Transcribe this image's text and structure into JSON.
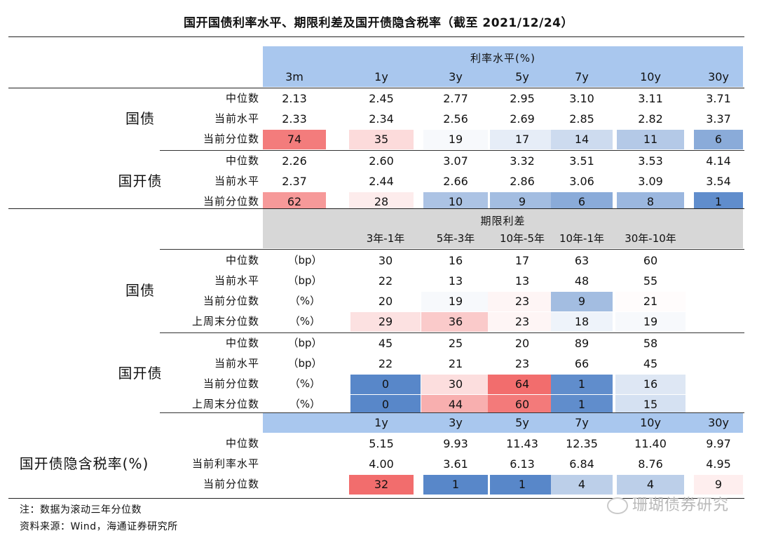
{
  "title": "国开国债利率水平、期限利差及国开债隐含税率（截至 2021/12/24）",
  "colors": {
    "header_blue": "#a9c7ee",
    "header_gray": "#d7d7d7",
    "scale_high": "#f26d6d",
    "scale_mid": "#ffffff",
    "scale_low": "#5887c9"
  },
  "section1": {
    "band_title": "利率水平(%)",
    "tenors": [
      "3m",
      "1y",
      "3y",
      "5y",
      "7y",
      "10y",
      "30y"
    ],
    "groups": [
      {
        "name": "国债",
        "rows": [
          {
            "label": "中位数",
            "values": [
              "2.13",
              "2.45",
              "2.77",
              "2.95",
              "3.10",
              "3.11",
              "3.71"
            ]
          },
          {
            "label": "当前水平",
            "values": [
              "2.33",
              "2.34",
              "2.56",
              "2.69",
              "2.85",
              "2.82",
              "3.37"
            ]
          },
          {
            "label": "当前分位数",
            "values": [
              "74",
              "35",
              "19",
              "17",
              "14",
              "11",
              "6"
            ],
            "heat": [
              74,
              35,
              19,
              17,
              14,
              11,
              6
            ]
          }
        ]
      },
      {
        "name": "国开债",
        "rows": [
          {
            "label": "中位数",
            "values": [
              "2.26",
              "2.60",
              "3.07",
              "3.32",
              "3.51",
              "3.53",
              "4.14"
            ]
          },
          {
            "label": "当前水平",
            "values": [
              "2.37",
              "2.44",
              "2.66",
              "2.86",
              "3.06",
              "3.09",
              "3.54"
            ]
          },
          {
            "label": "当前分位数",
            "values": [
              "62",
              "28",
              "10",
              "9",
              "6",
              "8",
              "1"
            ],
            "heat": [
              62,
              28,
              10,
              9,
              6,
              8,
              1
            ]
          }
        ]
      }
    ]
  },
  "section2": {
    "band_title": "期限利差",
    "spreads": [
      "3年-1年",
      "5年-3年",
      "10年-5年",
      "10年-1年",
      "30年-10年"
    ],
    "groups": [
      {
        "name": "国债",
        "rows": [
          {
            "label": "中位数",
            "unit": "（bp）",
            "values": [
              "30",
              "16",
              "17",
              "63",
              "60"
            ]
          },
          {
            "label": "当前水平",
            "unit": "（bp）",
            "values": [
              "22",
              "13",
              "13",
              "48",
              "55"
            ]
          },
          {
            "label": "当前分位数",
            "unit": "（%）",
            "values": [
              "20",
              "19",
              "23",
              "9",
              "21"
            ],
            "heat": [
              20,
              19,
              23,
              9,
              21
            ]
          },
          {
            "label": "上周末分位数",
            "unit": "（%）",
            "values": [
              "29",
              "36",
              "23",
              "18",
              "19"
            ],
            "heat": [
              29,
              36,
              23,
              18,
              19
            ]
          }
        ]
      },
      {
        "name": "国开债",
        "rows": [
          {
            "label": "中位数",
            "unit": "（bp）",
            "values": [
              "45",
              "25",
              "20",
              "89",
              "58"
            ]
          },
          {
            "label": "当前水平",
            "unit": "（bp）",
            "values": [
              "22",
              "21",
              "23",
              "66",
              "45"
            ]
          },
          {
            "label": "当前分位数",
            "unit": "（%）",
            "values": [
              "0",
              "30",
              "64",
              "1",
              "16"
            ],
            "heat": [
              0,
              30,
              64,
              1,
              16
            ]
          },
          {
            "label": "上周末分位数",
            "unit": "（%）",
            "values": [
              "0",
              "44",
              "60",
              "1",
              "15"
            ],
            "heat": [
              0,
              44,
              60,
              1,
              15
            ]
          }
        ]
      }
    ]
  },
  "section3": {
    "group_name": "国开债隐含税率(%)",
    "tenors": [
      "1y",
      "3y",
      "5y",
      "7y",
      "10y",
      "30y"
    ],
    "rows": [
      {
        "label": "中位数",
        "values": [
          "5.15",
          "9.93",
          "11.43",
          "12.35",
          "11.40",
          "9.97"
        ]
      },
      {
        "label": "当前利率水平",
        "values": [
          "4.00",
          "3.61",
          "6.13",
          "6.84",
          "8.76",
          "4.95"
        ]
      },
      {
        "label": "当前分位数",
        "values": [
          "32",
          "1",
          "1",
          "4",
          "4",
          "9"
        ],
        "heat": [
          32,
          1,
          1,
          4,
          4,
          9
        ]
      }
    ]
  },
  "footnotes": {
    "note": "注：数据为滚动三年分位数",
    "source": "资料来源：Wind，海通证券研究所"
  },
  "watermark": "珊瑚债券研究"
}
